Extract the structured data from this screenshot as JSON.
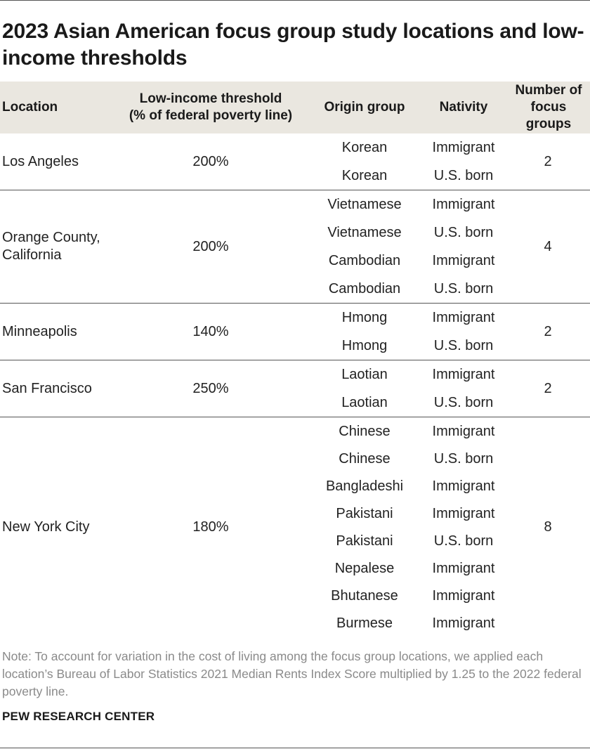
{
  "title": "2023 Asian American focus group study locations and low-income thresholds",
  "headers": {
    "location": "Location",
    "threshold": "Low-income threshold\n(% of federal poverty line)",
    "origin": "Origin group",
    "nativity": "Nativity",
    "count": "Number of\nfocus\ngroups"
  },
  "rows": [
    {
      "location": "Los Angeles",
      "threshold": "200%",
      "count": "2",
      "groups": [
        {
          "origin": "Korean",
          "nativity": "Immigrant"
        },
        {
          "origin": "Korean",
          "nativity": "U.S. born"
        }
      ]
    },
    {
      "location": "Orange County,\nCalifornia",
      "threshold": "200%",
      "count": "4",
      "groups": [
        {
          "origin": "Vietnamese",
          "nativity": "Immigrant"
        },
        {
          "origin": "Vietnamese",
          "nativity": "U.S. born"
        },
        {
          "origin": "Cambodian",
          "nativity": "Immigrant"
        },
        {
          "origin": "Cambodian",
          "nativity": "U.S. born"
        }
      ]
    },
    {
      "location": "Minneapolis",
      "threshold": "140%",
      "count": "2",
      "groups": [
        {
          "origin": "Hmong",
          "nativity": "Immigrant"
        },
        {
          "origin": "Hmong",
          "nativity": "U.S. born"
        }
      ]
    },
    {
      "location": "San Francisco",
      "threshold": "250%",
      "count": "2",
      "groups": [
        {
          "origin": "Laotian",
          "nativity": "Immigrant"
        },
        {
          "origin": "Laotian",
          "nativity": "U.S. born"
        }
      ]
    },
    {
      "location": "New York City",
      "threshold": "180%",
      "count": "8",
      "groups": [
        {
          "origin": "Chinese",
          "nativity": "Immigrant"
        },
        {
          "origin": "Chinese",
          "nativity": "U.S. born"
        },
        {
          "origin": "Bangladeshi",
          "nativity": "Immigrant"
        },
        {
          "origin": "Pakistani",
          "nativity": "Immigrant"
        },
        {
          "origin": "Pakistani",
          "nativity": "U.S. born"
        },
        {
          "origin": "Nepalese",
          "nativity": "Immigrant"
        },
        {
          "origin": "Bhutanese",
          "nativity": "Immigrant"
        },
        {
          "origin": "Burmese",
          "nativity": "Immigrant"
        }
      ]
    }
  ],
  "note": "Note: To account for variation in the cost of living among the focus group locations, we applied each location’s Bureau of Labor Statistics 2021 Median Rents Index Score multiplied by 1.25 to the 2022 federal poverty line.",
  "source": "PEW RESEARCH CENTER",
  "colors": {
    "header_bg": "#eae7e0",
    "rule": "#555555",
    "note_text": "#8a8a8a"
  }
}
